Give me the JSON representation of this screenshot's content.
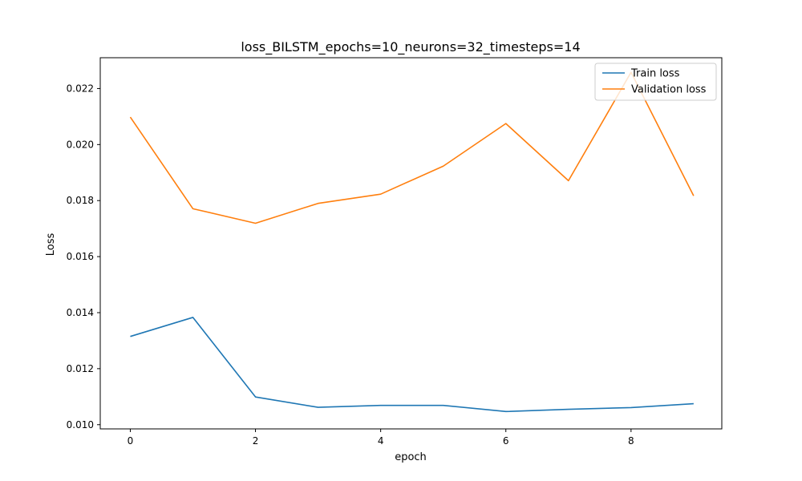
{
  "chart_data": {
    "type": "line",
    "title": "loss_BILSTM_epochs=10_neurons=32_timesteps=14",
    "xlabel": "epoch",
    "ylabel": "Loss",
    "xlim": [
      -0.48,
      9.45
    ],
    "ylim": [
      0.00985,
      0.0231
    ],
    "x_ticks": [
      0,
      2,
      4,
      6,
      8
    ],
    "y_ticks": [
      0.01,
      0.012,
      0.014,
      0.016,
      0.018,
      0.02,
      0.022
    ],
    "y_tick_decimals": 3,
    "grid": false,
    "legend_position": "top-right",
    "x": [
      0,
      1,
      2,
      3,
      4,
      5,
      6,
      7,
      8,
      9
    ],
    "series": [
      {
        "name": "Train loss",
        "color": "#1f77b4",
        "values": [
          0.01315,
          0.01383,
          0.01099,
          0.01062,
          0.01069,
          0.01069,
          0.01047,
          0.01055,
          0.01061,
          0.01075
        ]
      },
      {
        "name": "Validation loss",
        "color": "#ff7f0e",
        "values": [
          0.02098,
          0.01771,
          0.01719,
          0.0179,
          0.01823,
          0.01923,
          0.02075,
          0.01871,
          0.02258,
          0.01817
        ]
      }
    ]
  }
}
